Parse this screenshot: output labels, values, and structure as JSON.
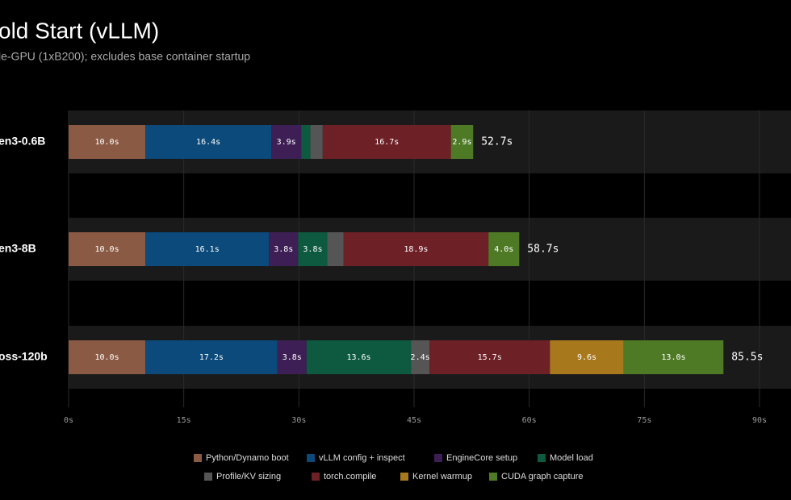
{
  "chart_data": {
    "type": "stacked-bar-horizontal",
    "title": "old Start (vLLM)",
    "subtitle": "le-GPU (1xB200); excludes base container startup",
    "categories": [
      "en3-0.6B",
      "en3-8B",
      "oss-120b"
    ],
    "series": [
      {
        "name": "Python/Dynamo boot",
        "color": "#8a5a44",
        "values": [
          10.0,
          10.0,
          10.0
        ],
        "value_labels": [
          "10.0s",
          "10.0s",
          "10.0s"
        ]
      },
      {
        "name": "vLLM config + inspect",
        "color": "#0b4a7a",
        "values": [
          16.4,
          16.1,
          17.2
        ],
        "value_labels": [
          "16.4s",
          "16.1s",
          "17.2s"
        ]
      },
      {
        "name": "EngineCore setup",
        "color": "#3d1f55",
        "values": [
          3.9,
          3.8,
          3.8
        ],
        "value_labels": [
          "3.9s",
          "3.8s",
          "3.8s"
        ]
      },
      {
        "name": "Model load",
        "color": "#0d5a40",
        "values": [
          1.2,
          3.8,
          13.6
        ],
        "value_labels": [
          null,
          "3.8s",
          "13.6s"
        ]
      },
      {
        "name": "Profile/KV sizing",
        "color": "#555555",
        "values": [
          1.6,
          2.1,
          2.4
        ],
        "value_labels": [
          null,
          null,
          "2.4s"
        ]
      },
      {
        "name": "torch.compile",
        "color": "#6e2027",
        "values": [
          16.7,
          18.9,
          15.7
        ],
        "value_labels": [
          "16.7s",
          "18.9s",
          "15.7s"
        ]
      },
      {
        "name": "Kernel warmup",
        "color": "#a8781d",
        "values": [
          0,
          0,
          9.6
        ],
        "value_labels": [
          null,
          null,
          "9.6s"
        ]
      },
      {
        "name": "CUDA graph capture",
        "color": "#4e7a26",
        "values": [
          2.9,
          4.0,
          13.0
        ],
        "value_labels": [
          "2.9s",
          "4.0s",
          "13.0s"
        ]
      }
    ],
    "totals": [
      52.7,
      58.7,
      85.5
    ],
    "total_labels": [
      "52.7s",
      "58.7s",
      "85.5s"
    ],
    "xlim": [
      0,
      90
    ],
    "xticks": [
      {
        "value": 0,
        "label": "0s"
      },
      {
        "value": 15,
        "label": "15s"
      },
      {
        "value": 30,
        "label": "30s"
      },
      {
        "value": 45,
        "label": "45s"
      },
      {
        "value": 60,
        "label": "60s"
      },
      {
        "value": 75,
        "label": "75s"
      },
      {
        "value": 90,
        "label": "90s"
      }
    ],
    "grid": true,
    "legend": "bottom"
  }
}
